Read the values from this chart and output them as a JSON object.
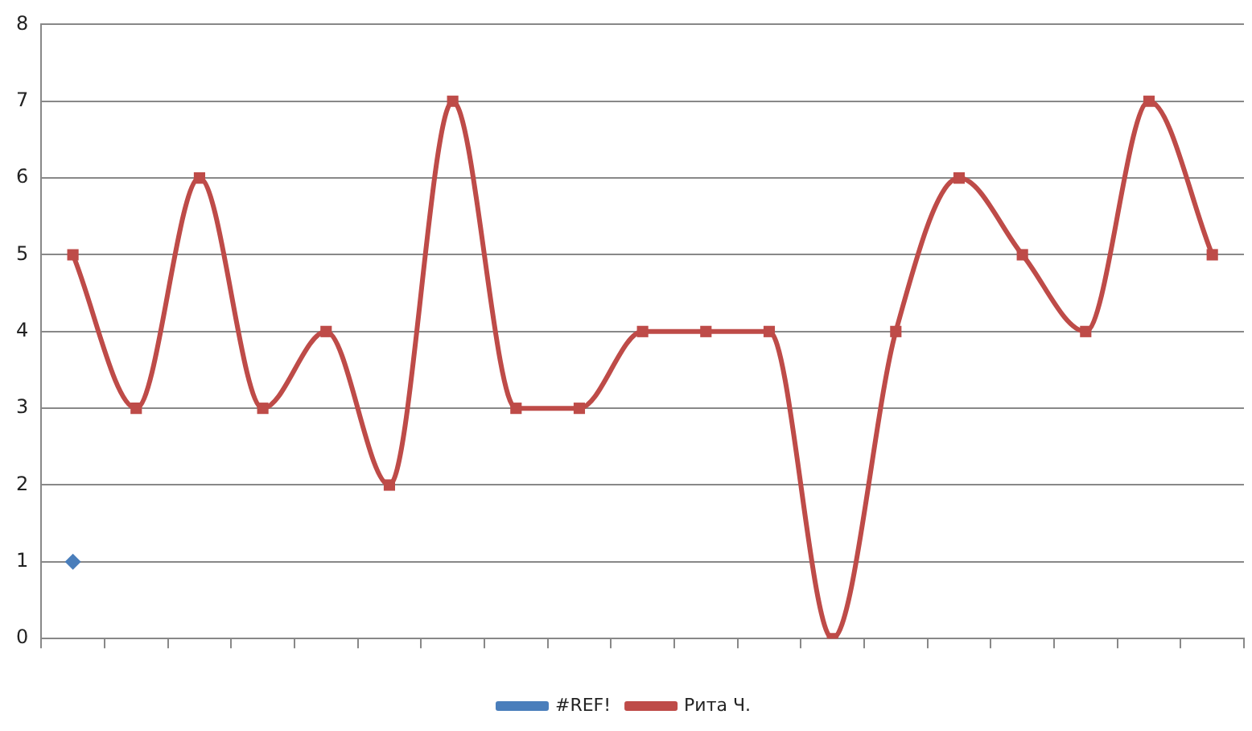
{
  "chart_data": {
    "type": "line",
    "categories": [
      null,
      null,
      null,
      null,
      null,
      null,
      null,
      null,
      null,
      null,
      null,
      null,
      null,
      null,
      null,
      null,
      null,
      null,
      null
    ],
    "series": [
      {
        "name": "#REF!",
        "color": "#4a7ebb",
        "marker": "diamond",
        "values": [
          1,
          null,
          null,
          null,
          null,
          null,
          null,
          null,
          null,
          null,
          null,
          null,
          null,
          null,
          null,
          null,
          null,
          null,
          null
        ]
      },
      {
        "name": "Рита Ч.",
        "color": "#be4b48",
        "marker": "square",
        "values": [
          5,
          3,
          6,
          3,
          4,
          2,
          7,
          3,
          3,
          4,
          4,
          4,
          0,
          4,
          6,
          5,
          4,
          7,
          5
        ]
      }
    ],
    "ylim": [
      0,
      8
    ],
    "yticks": [
      0,
      1,
      2,
      3,
      4,
      5,
      6,
      7,
      8
    ],
    "grid": "y",
    "legend": "bottom"
  }
}
